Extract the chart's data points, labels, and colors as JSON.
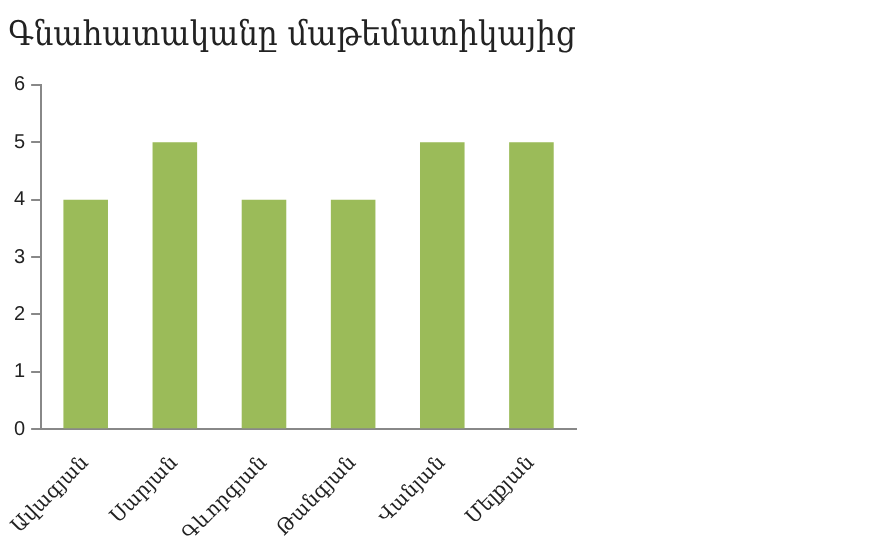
{
  "chart_data": {
    "type": "bar",
    "title": "Գնահատականը մաթեմատիկայից",
    "categories": [
      "Ավագյան",
      "Սարյան",
      "Գևորգյան",
      "Թանգյան",
      "Վանյան",
      "Մելքյան"
    ],
    "values": [
      4,
      5,
      4,
      4,
      5,
      5
    ],
    "color": "#9bbb59",
    "ylim": [
      0,
      6
    ],
    "yticks": [
      0,
      1,
      2,
      3,
      4,
      5,
      6
    ],
    "grid": false,
    "legend": false
  }
}
